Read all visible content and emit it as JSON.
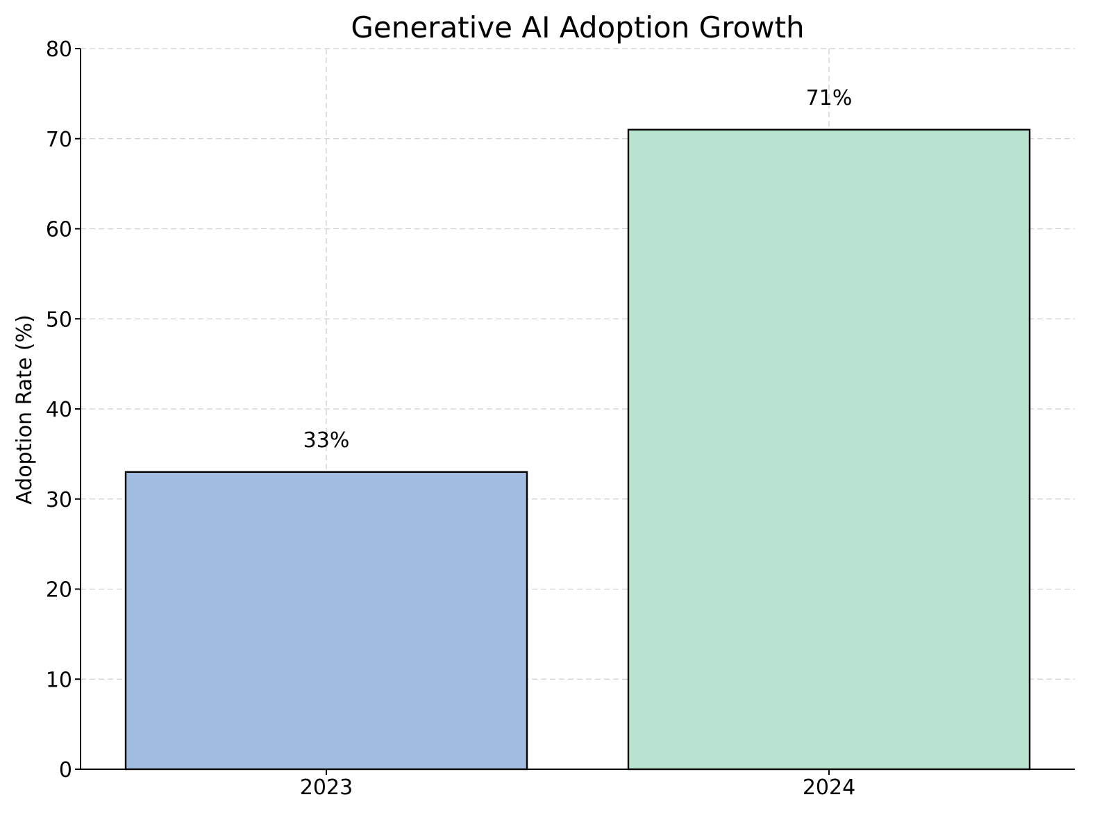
{
  "chart_data": {
    "type": "bar",
    "title": "Generative AI Adoption Growth",
    "xlabel": "",
    "ylabel": "Adoption Rate (%)",
    "categories": [
      "2023",
      "2024"
    ],
    "values": [
      33,
      71
    ],
    "data_labels": [
      "33%",
      "71%"
    ],
    "bar_colors": [
      "#a3bce1",
      "#b9e3d1"
    ],
    "ylim": [
      0,
      80
    ],
    "yticks": [
      0,
      10,
      20,
      30,
      40,
      50,
      60,
      70,
      80
    ],
    "ytick_labels": [
      "0",
      "10",
      "20",
      "30",
      "40",
      "50",
      "60",
      "70",
      "80"
    ],
    "grid": true,
    "legend": false
  }
}
